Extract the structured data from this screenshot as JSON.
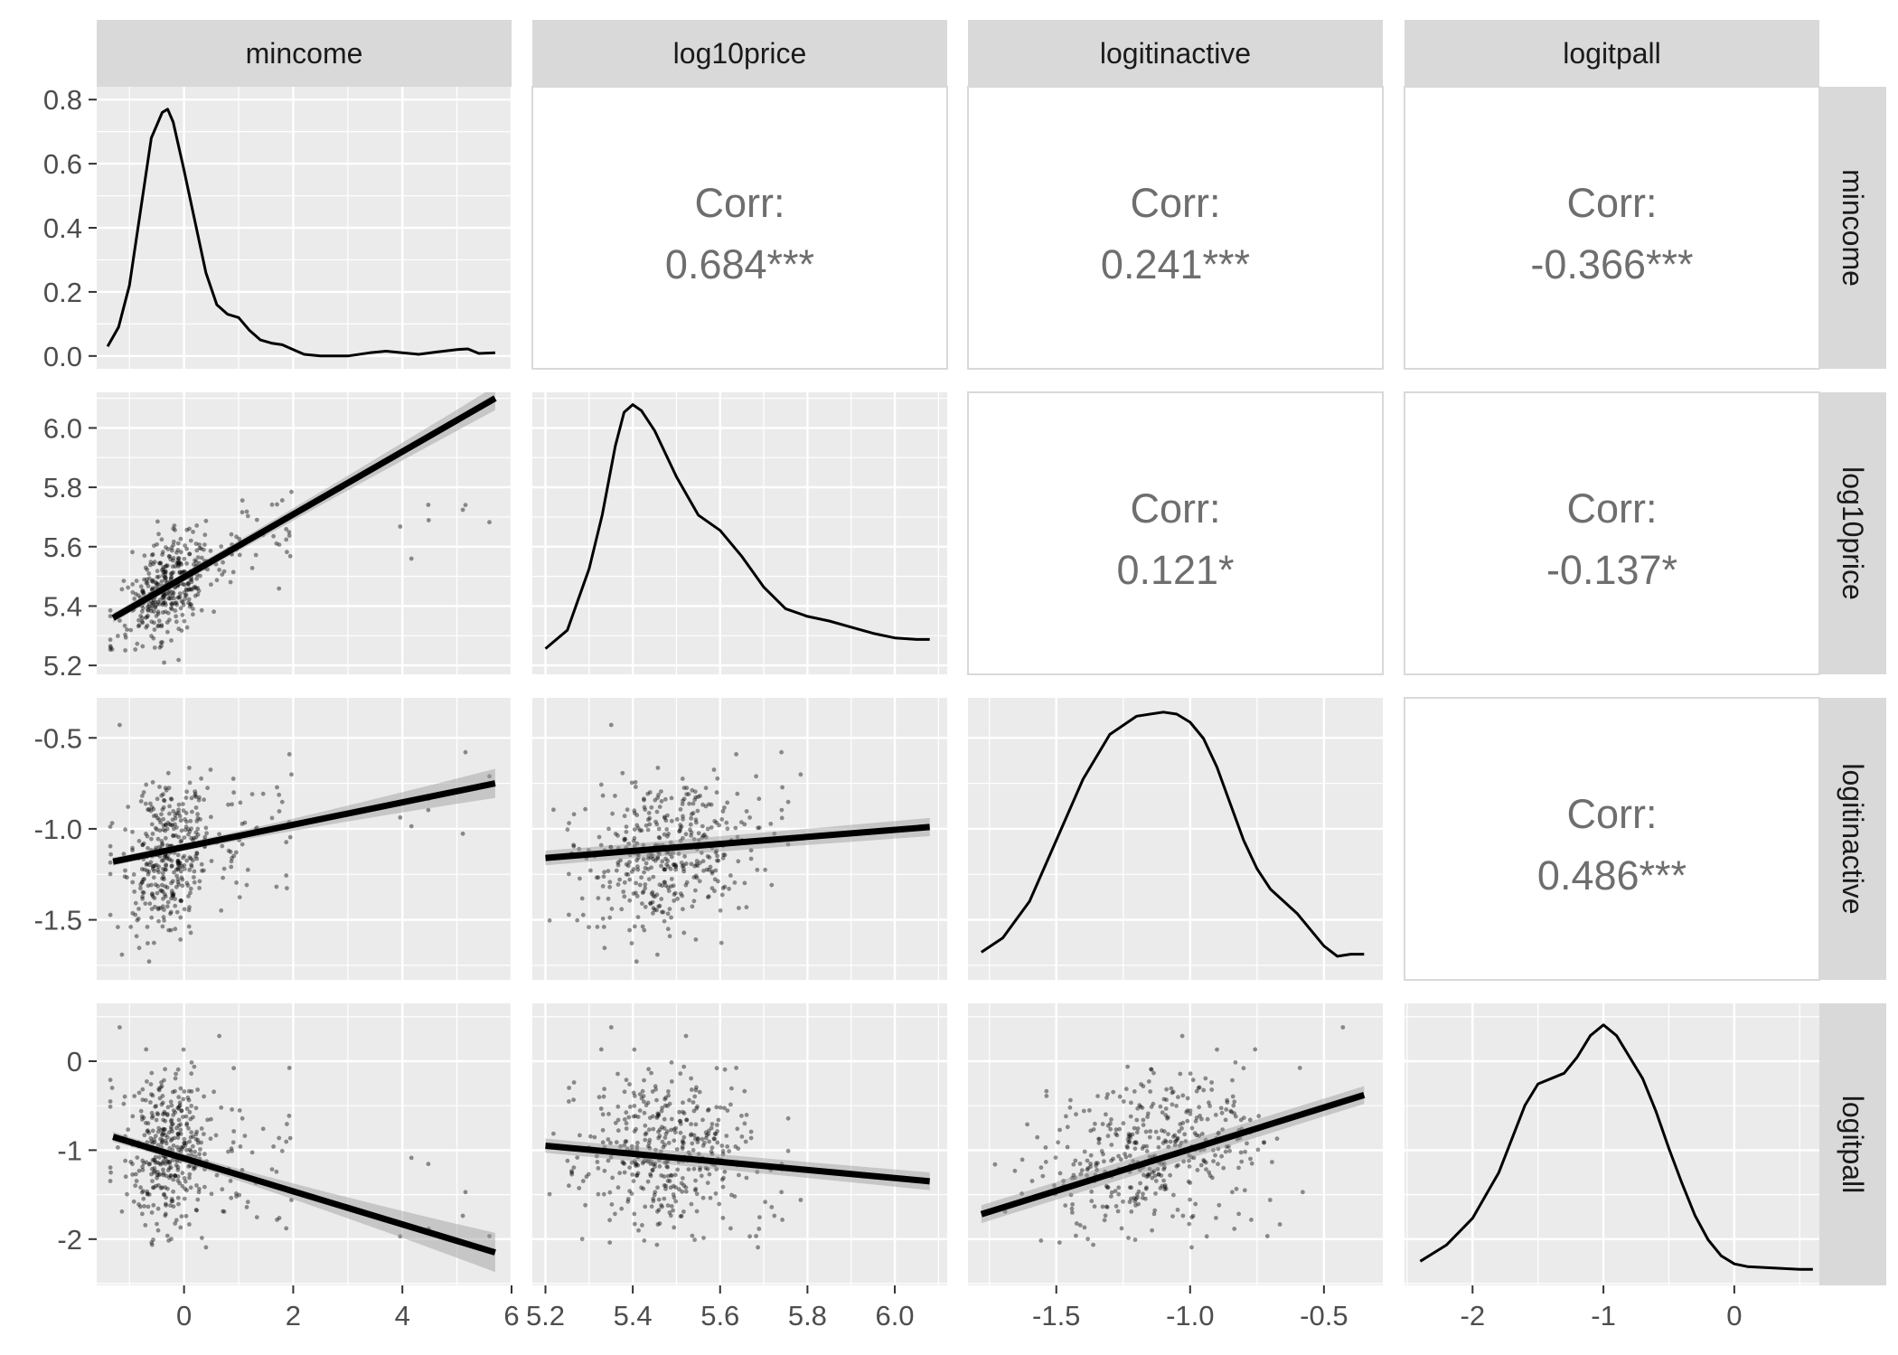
{
  "chart_data": {
    "type": "scatter-matrix",
    "variables": [
      "mincome",
      "log10price",
      "logitinactive",
      "logitpall"
    ],
    "axes": {
      "mincome": {
        "range": [
          -1.6,
          6.0
        ],
        "ticks": [
          0,
          2,
          4,
          6
        ],
        "tick_labels": [
          "0",
          "2",
          "4",
          "6"
        ]
      },
      "log10price": {
        "range": [
          5.17,
          6.12
        ],
        "ticks": [
          5.2,
          5.4,
          5.6,
          5.8,
          6.0
        ],
        "tick_labels": [
          "5.2",
          "5.4",
          "5.6",
          "5.8",
          "6.0"
        ]
      },
      "logitinactive": {
        "range": [
          -1.83,
          -0.28
        ],
        "ticks": [
          -1.5,
          -1.0,
          -0.5
        ],
        "tick_labels": [
          "-1.5",
          "-1.0",
          "-0.5"
        ]
      },
      "logitpall": {
        "range": [
          -2.52,
          0.65
        ],
        "ticks": [
          -2,
          -1,
          0
        ],
        "tick_labels": [
          "-2",
          "-1",
          "0"
        ]
      }
    },
    "density_axis": {
      "range": [
        -0.04,
        0.84
      ],
      "ticks": [
        0.0,
        0.2,
        0.4,
        0.6,
        0.8
      ],
      "tick_labels": [
        "0.0",
        "0.2",
        "0.4",
        "0.6",
        "0.8"
      ]
    },
    "correlations": [
      {
        "row": 0,
        "col": 1,
        "label": "Corr:",
        "value": "0.684***"
      },
      {
        "row": 0,
        "col": 2,
        "label": "Corr:",
        "value": "0.241***"
      },
      {
        "row": 0,
        "col": 3,
        "label": "Corr:",
        "value": "-0.366***"
      },
      {
        "row": 1,
        "col": 2,
        "label": "Corr:",
        "value": "0.121*"
      },
      {
        "row": 1,
        "col": 3,
        "label": "Corr:",
        "value": "-0.137*"
      },
      {
        "row": 2,
        "col": 3,
        "label": "Corr:",
        "value": "0.486***"
      }
    ],
    "densities": {
      "mincome": {
        "x": [
          -1.4,
          -1.2,
          -1.0,
          -0.8,
          -0.6,
          -0.4,
          -0.3,
          -0.2,
          0.0,
          0.2,
          0.4,
          0.6,
          0.8,
          1.0,
          1.2,
          1.4,
          1.6,
          1.8,
          2.0,
          2.2,
          2.5,
          3.0,
          3.4,
          3.7,
          4.0,
          4.3,
          4.6,
          5.0,
          5.2,
          5.4,
          5.7
        ],
        "y": [
          0.03,
          0.09,
          0.22,
          0.45,
          0.68,
          0.76,
          0.77,
          0.73,
          0.58,
          0.42,
          0.26,
          0.16,
          0.13,
          0.12,
          0.08,
          0.05,
          0.04,
          0.035,
          0.02,
          0.005,
          0.0,
          0.0,
          0.01,
          0.015,
          0.01,
          0.005,
          0.012,
          0.02,
          0.022,
          0.008,
          0.01
        ]
      },
      "log10price": {
        "x": [
          5.2,
          5.25,
          5.3,
          5.33,
          5.36,
          5.38,
          5.4,
          5.42,
          5.45,
          5.5,
          5.55,
          5.6,
          5.65,
          5.7,
          5.75,
          5.8,
          5.85,
          5.9,
          5.95,
          6.0,
          6.05,
          6.08
        ],
        "y": [
          0.08,
          0.2,
          0.6,
          0.95,
          1.4,
          1.62,
          1.67,
          1.63,
          1.5,
          1.2,
          0.95,
          0.85,
          0.68,
          0.48,
          0.34,
          0.29,
          0.26,
          0.22,
          0.18,
          0.15,
          0.14,
          0.14
        ],
        "ymax": 1.75
      },
      "logitinactive": {
        "x": [
          -1.78,
          -1.7,
          -1.6,
          -1.5,
          -1.4,
          -1.3,
          -1.2,
          -1.1,
          -1.05,
          -1.0,
          -0.95,
          -0.9,
          -0.85,
          -0.8,
          -0.75,
          -0.7,
          -0.6,
          -0.5,
          -0.45,
          -0.4,
          -0.35
        ],
        "y": [
          0.07,
          0.14,
          0.32,
          0.62,
          0.92,
          1.14,
          1.23,
          1.25,
          1.24,
          1.2,
          1.12,
          0.98,
          0.8,
          0.62,
          0.48,
          0.38,
          0.26,
          0.1,
          0.05,
          0.06,
          0.06
        ],
        "ymax": 1.32
      },
      "logitpall": {
        "x": [
          -2.4,
          -2.2,
          -2.0,
          -1.8,
          -1.6,
          -1.5,
          -1.4,
          -1.3,
          -1.2,
          -1.1,
          -1.0,
          -0.9,
          -0.8,
          -0.7,
          -0.6,
          -0.5,
          -0.4,
          -0.3,
          -0.2,
          -0.1,
          0.0,
          0.1,
          0.3,
          0.5,
          0.6
        ],
        "y": [
          0.04,
          0.1,
          0.2,
          0.37,
          0.62,
          0.7,
          0.72,
          0.74,
          0.8,
          0.88,
          0.92,
          0.88,
          0.8,
          0.72,
          0.6,
          0.46,
          0.33,
          0.21,
          0.12,
          0.06,
          0.03,
          0.02,
          0.015,
          0.01,
          0.01
        ],
        "ymax": 1.0
      }
    },
    "fits": [
      {
        "row": 1,
        "col": 0,
        "x": [
          -1.3,
          5.7
        ],
        "y": [
          5.36,
          6.1
        ],
        "band": [
          0.015,
          0.04
        ]
      },
      {
        "row": 2,
        "col": 0,
        "x": [
          -1.3,
          5.7
        ],
        "y": [
          -1.18,
          -0.75
        ],
        "band": [
          0.02,
          0.08
        ]
      },
      {
        "row": 2,
        "col": 1,
        "x": [
          5.2,
          6.08
        ],
        "y": [
          -1.16,
          -0.99
        ],
        "band": [
          0.04,
          0.05
        ]
      },
      {
        "row": 3,
        "col": 0,
        "x": [
          -1.3,
          5.7
        ],
        "y": [
          -0.85,
          -2.15
        ],
        "band": [
          0.05,
          0.22
        ]
      },
      {
        "row": 3,
        "col": 1,
        "x": [
          5.2,
          6.08
        ],
        "y": [
          -0.95,
          -1.35
        ],
        "band": [
          0.08,
          0.1
        ]
      },
      {
        "row": 3,
        "col": 2,
        "x": [
          -1.78,
          -0.35
        ],
        "y": [
          -1.72,
          -0.38
        ],
        "band": [
          0.1,
          0.1
        ]
      }
    ],
    "fit_type": "linear regression with confidence band",
    "point_style": "small semi-transparent black dots",
    "n_points": 420
  }
}
